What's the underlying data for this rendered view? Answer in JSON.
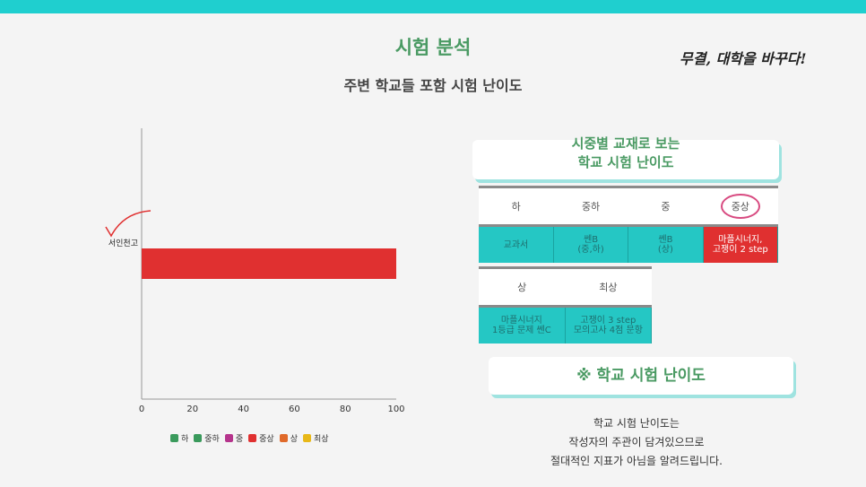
{
  "header": {
    "title": "시험 분석",
    "subtitle": "주변 학교들 포함 시험 난이도",
    "slogan": "무결, 대학을 바꾸다!",
    "accent_color": "#1fcfcf",
    "title_color": "#4a9a63"
  },
  "chart_data": {
    "type": "bar",
    "orientation": "horizontal",
    "categories": [
      "서인천고"
    ],
    "values": [
      100
    ],
    "bar_color": "#e03030",
    "xlim": [
      0,
      100
    ],
    "x_ticks": [
      0,
      20,
      40,
      60,
      80,
      100
    ],
    "grid": false,
    "legend_position": "bottom",
    "legend": [
      {
        "label": "하",
        "color": "#3a9a5c"
      },
      {
        "label": "중하",
        "color": "#3a9a5c"
      },
      {
        "label": "중",
        "color": "#b5348c"
      },
      {
        "label": "중상",
        "color": "#e03030"
      },
      {
        "label": "상",
        "color": "#e06a2a"
      },
      {
        "label": "최상",
        "color": "#e8b818"
      }
    ],
    "annotation": "checkmark"
  },
  "textbook_card": {
    "line1": "시중별 교재로 보는",
    "line2": "학교 시험 난이도"
  },
  "table1": {
    "headers": [
      "하",
      "중하",
      "중",
      "중상"
    ],
    "cells": [
      "교과서",
      "쎈B\n(중,하)",
      "쎈B\n(상)",
      "마플시너지,\n고쟁이 2 step"
    ]
  },
  "table2": {
    "headers": [
      "상",
      "최상"
    ],
    "cells": [
      "마플시너지\n1등급 문제 쎈C",
      "고쟁이 3 step\n모의고사 4점 문항"
    ]
  },
  "difficulty_card": {
    "label": "※ 학교 시험 난이도"
  },
  "note": {
    "line1": "학교 시험 난이도는",
    "line2": "작성자의 주관이 담겨있으므로",
    "line3": "절대적인 지표가 아님을 알려드립니다."
  }
}
